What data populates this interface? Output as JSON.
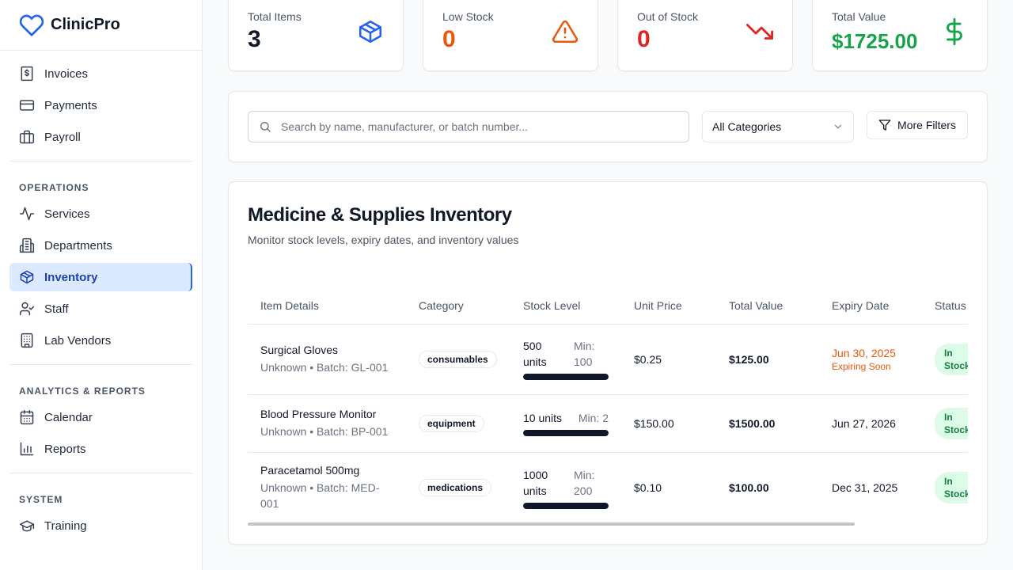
{
  "brand": {
    "name": "ClinicPro"
  },
  "sidebar": {
    "top_items": [
      {
        "label": "Invoices",
        "icon": "invoice-icon"
      },
      {
        "label": "Payments",
        "icon": "credit-card-icon"
      },
      {
        "label": "Payroll",
        "icon": "briefcase-icon"
      }
    ],
    "sections": [
      {
        "title": "OPERATIONS",
        "items": [
          {
            "label": "Services",
            "icon": "activity-icon"
          },
          {
            "label": "Departments",
            "icon": "building-icon"
          },
          {
            "label": "Inventory",
            "icon": "package-icon",
            "active": true
          },
          {
            "label": "Staff",
            "icon": "user-check-icon"
          },
          {
            "label": "Lab Vendors",
            "icon": "office-building-icon"
          }
        ]
      },
      {
        "title": "ANALYTICS & REPORTS",
        "items": [
          {
            "label": "Calendar",
            "icon": "calendar-icon"
          },
          {
            "label": "Reports",
            "icon": "bar-chart-icon"
          }
        ]
      },
      {
        "title": "SYSTEM",
        "items": [
          {
            "label": "Training",
            "icon": "graduation-cap-icon"
          }
        ]
      }
    ]
  },
  "stats": {
    "total_items": {
      "label": "Total Items",
      "value": "3",
      "color": "#111827"
    },
    "low_stock": {
      "label": "Low Stock",
      "value": "0",
      "color": "#ea580c"
    },
    "out_of_stock": {
      "label": "Out of Stock",
      "value": "0",
      "color": "#dc2626"
    },
    "total_value": {
      "label": "Total Value",
      "value": "$1725.00",
      "color": "#16a34a"
    }
  },
  "filters": {
    "search_placeholder": "Search by name, manufacturer, or batch number...",
    "category_selected": "All Categories",
    "more_filters_label": "More Filters"
  },
  "inventory": {
    "title": "Medicine & Supplies Inventory",
    "subtitle": "Monitor stock levels, expiry dates, and inventory values",
    "columns": [
      "Item Details",
      "Category",
      "Stock Level",
      "Unit Price",
      "Total Value",
      "Expiry Date",
      "Status"
    ],
    "rows": [
      {
        "name": "Surgical Gloves",
        "meta": "Unknown • Batch: GL-001",
        "category": "consumables",
        "stock": "500 units",
        "min": "Min: 100",
        "stock_fill": 1.0,
        "unit_price": "$0.25",
        "total_value": "$125.00",
        "expiry": "Jun 30, 2025",
        "expiry_note": "Expiring Soon",
        "status": "In Stock"
      },
      {
        "name": "Blood Pressure Monitor",
        "meta": "Unknown • Batch: BP-001",
        "category": "equipment",
        "stock": "10 units",
        "min": "Min: 2",
        "stock_fill": 1.0,
        "unit_price": "$150.00",
        "total_value": "$1500.00",
        "expiry": "Jun 27, 2026",
        "status": "In Stock"
      },
      {
        "name": "Paracetamol 500mg",
        "meta": "Unknown • Batch: MED-001",
        "category": "medications",
        "stock": "1000 units",
        "min": "Min: 200",
        "stock_fill": 1.0,
        "unit_price": "$0.10",
        "total_value": "$100.00",
        "expiry": "Dec 31, 2025",
        "status": "In Stock"
      }
    ]
  },
  "colors": {
    "accent": "#2563eb",
    "active_bg": "#dbeafe",
    "warning": "#ea580c",
    "danger": "#dc2626",
    "success": "#16a34a"
  }
}
